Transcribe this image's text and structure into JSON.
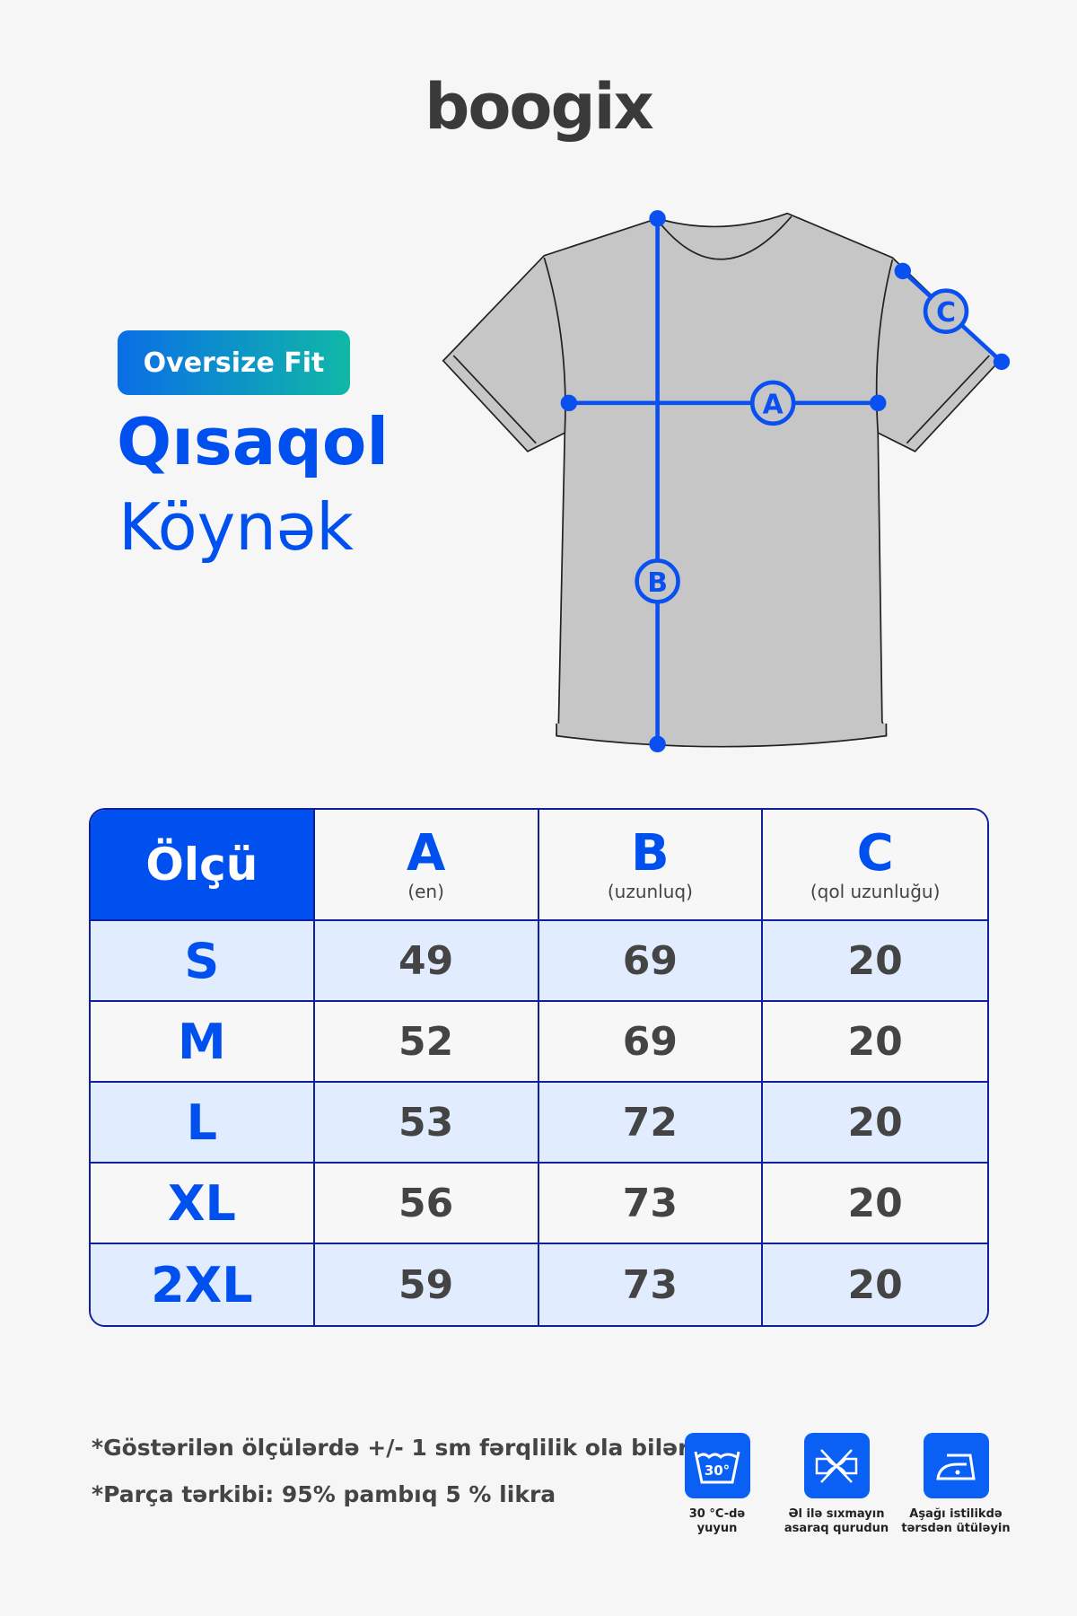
{
  "brand": {
    "logo": "boogix"
  },
  "badge": "Oversize Fit",
  "title": {
    "line1": "Qısaqol",
    "line2": "Köynək"
  },
  "diagram": {
    "labels": [
      "A",
      "B",
      "C"
    ],
    "accent": "#0050f0"
  },
  "table": {
    "header": {
      "size": "Ölçü",
      "cols": [
        {
          "letter": "A",
          "desc": "(en)"
        },
        {
          "letter": "B",
          "desc": "(uzunluq)"
        },
        {
          "letter": "C",
          "desc": "(qol uzunluğu)"
        }
      ]
    },
    "rows": [
      {
        "size": "S",
        "a": "49",
        "b": "69",
        "c": "20"
      },
      {
        "size": "M",
        "a": "52",
        "b": "69",
        "c": "20"
      },
      {
        "size": "L",
        "a": "53",
        "b": "72",
        "c": "20"
      },
      {
        "size": "XL",
        "a": "56",
        "b": "73",
        "c": "20"
      },
      {
        "size": "2XL",
        "a": "59",
        "b": "73",
        "c": "20"
      }
    ]
  },
  "notes": [
    "*Göstərilən ölçülərdə +/- 1 sm fərqlilik ola bilər.",
    "*Parça tərkibi: 95% pambıq 5 % likra"
  ],
  "care": [
    {
      "icon": "wash-30-icon",
      "temp": "30°",
      "label1": "30 °C-də",
      "label2": "yuyun"
    },
    {
      "icon": "no-wring-icon",
      "label1": "Əl ilə sıxmayın",
      "label2": "asaraq qurudun"
    },
    {
      "icon": "iron-low-icon",
      "label1": "Aşağı istilikdə",
      "label2": "tərsdən ütüləyin"
    }
  ]
}
